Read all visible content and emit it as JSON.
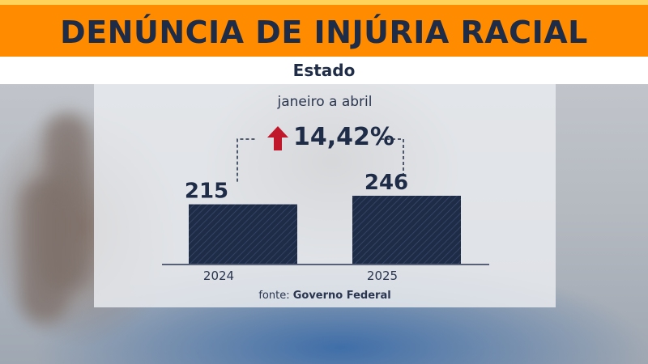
{
  "header": {
    "title": "DENÚNCIA DE INJÚRIA RACIAL",
    "subtitle": "Estado"
  },
  "chart_meta": {
    "period": "janeiro a abril",
    "change": "14,42%",
    "source_prefix": "fonte:",
    "source_name": "Governo Federal"
  },
  "colors": {
    "accent_orange": "#ff8c00",
    "bar_navy": "#1f2c47",
    "arrow_red": "#c0182a"
  },
  "chart_data": {
    "type": "bar",
    "categories": [
      "2024",
      "2025"
    ],
    "values": [
      215,
      246
    ],
    "value_labels": [
      "215",
      "246"
    ],
    "title": "DENÚNCIA DE INJÚRIA RACIAL",
    "subtitle": "Estado",
    "ylim": [
      0,
      246
    ],
    "grid": false,
    "legend": "none"
  }
}
